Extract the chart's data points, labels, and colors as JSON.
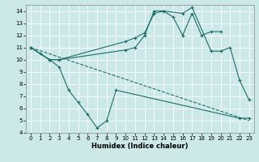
{
  "xlabel": "Humidex (Indice chaleur)",
  "background_color": "#cce8e8",
  "line_color": "#1a6e6a",
  "xlim": [
    -0.5,
    23.5
  ],
  "ylim": [
    4,
    14.5
  ],
  "yticks": [
    4,
    5,
    6,
    7,
    8,
    9,
    10,
    11,
    12,
    13,
    14
  ],
  "xticks": [
    0,
    1,
    2,
    3,
    4,
    5,
    6,
    7,
    8,
    9,
    10,
    11,
    12,
    13,
    14,
    15,
    16,
    17,
    18,
    19,
    20,
    21,
    22,
    23
  ],
  "series": [
    {
      "x": [
        0,
        1,
        2,
        3,
        10,
        11,
        12,
        13,
        14,
        15,
        16,
        17,
        18,
        19,
        20
      ],
      "y": [
        11,
        10.5,
        10,
        10,
        11.5,
        11.8,
        12.2,
        13.8,
        14.0,
        13.5,
        12.0,
        13.8,
        12.0,
        12.3,
        12.3
      ],
      "style": "-",
      "marker": "+"
    },
    {
      "x": [
        0,
        2,
        3,
        10,
        11,
        12,
        13,
        14,
        16,
        17,
        19,
        20,
        21,
        22,
        23
      ],
      "y": [
        11,
        10,
        10,
        10.8,
        11.0,
        12.0,
        14.0,
        14.0,
        13.8,
        14.3,
        10.7,
        10.7,
        11.0,
        8.3,
        6.7
      ],
      "style": "-",
      "marker": "+"
    },
    {
      "x": [
        0,
        2,
        3,
        4,
        5,
        6,
        7,
        8,
        9,
        22,
        23
      ],
      "y": [
        11,
        10,
        9.4,
        7.5,
        6.5,
        5.5,
        4.4,
        5.0,
        7.5,
        5.2,
        5.2
      ],
      "style": "-",
      "marker": "+"
    },
    {
      "x": [
        0,
        23
      ],
      "y": [
        11,
        5.0
      ],
      "style": "--",
      "marker": null
    }
  ]
}
